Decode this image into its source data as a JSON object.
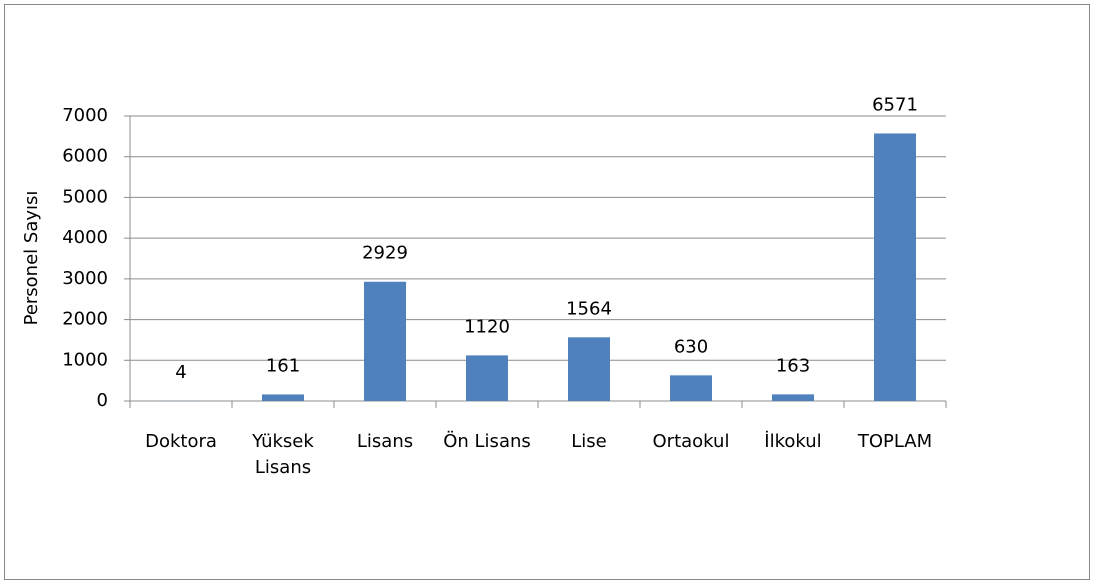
{
  "chart_data": {
    "type": "bar",
    "y_label": "Personel Sayısı",
    "categories": [
      "Doktora",
      "Yüksek Lisans",
      "Lisans",
      "Ön Lisans",
      "Lise",
      "Ortaokul",
      "İlkokul",
      "TOPLAM"
    ],
    "values": [
      4,
      161,
      2929,
      1120,
      1564,
      630,
      163,
      6571
    ],
    "color": "#4f81bd",
    "ylim": [
      0,
      7000
    ],
    "yticks": [
      0,
      1000,
      2000,
      3000,
      4000,
      5000,
      6000,
      7000
    ],
    "grid": true
  }
}
